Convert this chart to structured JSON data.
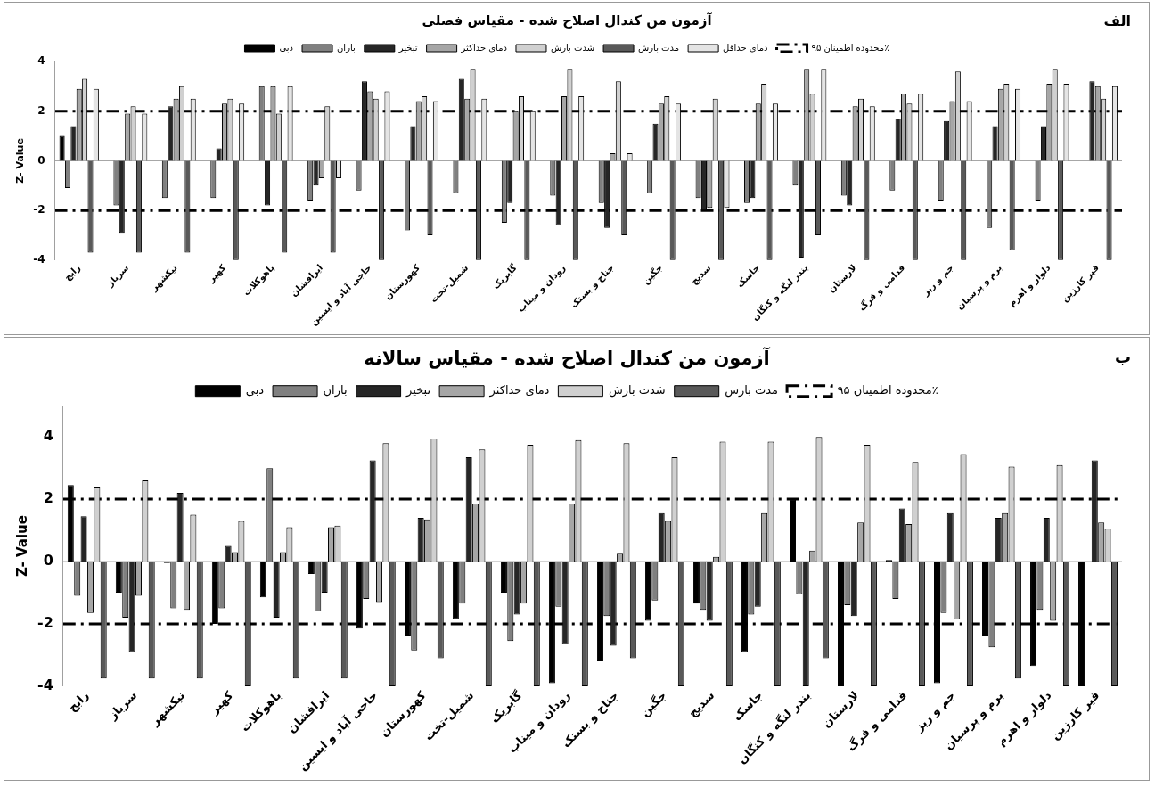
{
  "chart_data": [
    {
      "type": "bar",
      "title": "آزمون من کندال اصلاح شده - مقیاس فصلی",
      "ylabel": "Z- Value",
      "annotations": [
        "الف"
      ],
      "categories": [
        "رابج",
        "سرباز",
        "نیکشهر",
        "کهیر",
        "باهوکلات",
        "ایرافشان",
        "حاجی آباد و ایسین",
        "کهورستان",
        "شمیل-تخت",
        "گابریک",
        "رودان و میناب",
        "جناح و بستک",
        "جگین",
        "سدیج",
        "جاسک",
        "بندر لنگه و کنگان",
        "لارستان",
        "فدامی و فرگ",
        "جم و ریز",
        "برم و پرسیان",
        "دلوار و اهرم",
        "قیر کارزین"
      ],
      "series": [
        {
          "name": "دبی",
          "color": "#000000",
          "values": [
            1.0,
            0,
            0,
            0,
            0,
            0,
            0,
            0,
            0,
            0,
            0,
            0,
            0,
            0,
            0,
            0,
            0,
            0,
            0,
            0,
            0,
            0
          ]
        },
        {
          "name": "باران",
          "color": "#808080",
          "values": [
            -1.1,
            -1.8,
            -1.5,
            -1.5,
            3.0,
            -1.6,
            -1.2,
            -2.8,
            -1.3,
            -2.5,
            -1.4,
            -1.7,
            -1.3,
            -1.5,
            -1.7,
            -1.0,
            -1.4,
            -1.2,
            -1.6,
            -2.7,
            -1.6,
            0
          ]
        },
        {
          "name": "تبخیر",
          "color": "#262626",
          "values": [
            1.4,
            -2.9,
            2.2,
            0.5,
            -1.8,
            -1.0,
            3.2,
            1.4,
            3.3,
            -1.7,
            -2.6,
            -2.7,
            1.5,
            -2.0,
            -1.5,
            -3.9,
            -1.8,
            1.7,
            1.6,
            1.4,
            1.4,
            3.2
          ]
        },
        {
          "name": "دمای حداکثر",
          "color": "#a6a6a6",
          "values": [
            2.9,
            1.9,
            2.5,
            2.3,
            3.0,
            -0.7,
            2.8,
            2.4,
            2.5,
            2.0,
            2.6,
            0.3,
            2.3,
            -1.9,
            2.3,
            3.7,
            2.2,
            2.7,
            2.4,
            2.9,
            3.1,
            3.0
          ]
        },
        {
          "name": "شدت بارش",
          "color": "#d0d0d0",
          "values": [
            3.3,
            2.2,
            3.0,
            2.5,
            1.9,
            2.2,
            2.5,
            2.6,
            3.7,
            2.6,
            3.7,
            3.2,
            2.6,
            2.5,
            3.1,
            2.7,
            2.5,
            2.3,
            3.6,
            3.1,
            3.7,
            2.5
          ]
        },
        {
          "name": "مدت بارش",
          "color": "#595959",
          "values": [
            -3.7,
            -3.7,
            -3.7,
            -4,
            -3.7,
            -3.7,
            -4,
            -3.0,
            -4,
            -4,
            -4,
            -3.0,
            -4,
            -4,
            -4,
            -3.0,
            -4,
            -4,
            -4,
            -3.6,
            -4,
            -4
          ]
        },
        {
          "name": "دمای حداقل",
          "color": "#e4e4e4",
          "values": [
            2.9,
            1.9,
            2.5,
            2.3,
            3.0,
            -0.7,
            2.8,
            2.4,
            2.5,
            2.0,
            2.6,
            0.3,
            2.3,
            -1.9,
            2.3,
            3.7,
            2.2,
            2.7,
            2.4,
            2.9,
            3.1,
            3.0
          ]
        }
      ],
      "ylim": [
        -4,
        4
      ],
      "yticks": [
        -4,
        -2,
        0,
        2,
        4
      ],
      "grid": false,
      "legend": "top",
      "ref_lines": [
        {
          "axis": "y",
          "value": 2,
          "label": "محدوده اطمینان ۹۵٪",
          "color": "#000000",
          "line_style": "dashed"
        },
        {
          "axis": "y",
          "value": -2,
          "color": "#000000",
          "line_style": "dashed"
        }
      ]
    },
    {
      "type": "bar",
      "title": "آزمون من کندال اصلاح شده - مقیاس سالانه",
      "ylabel": "Z- Value",
      "annotations": [
        "ب"
      ],
      "categories": [
        "رابج",
        "سرباز",
        "نیکشهر",
        "کهیر",
        "باهوکلات",
        "ایرافشان",
        "حاجی آباد و ایسین",
        "کهورستان",
        "شمیل-تخت",
        "گابریک",
        "رودان و میناب",
        "جناح و بستک",
        "جگین",
        "سدیج",
        "جاسک",
        "بندر لنگه و کنگان",
        "لارستان",
        "فدامی و فرگ",
        "جم و ریز",
        "برم و پرسیان",
        "دلوار و اهرم",
        "قیر کارزین"
      ],
      "series": [
        {
          "name": "دبی",
          "color": "#000000",
          "values": [
            2.45,
            -1.0,
            -0.05,
            -2.0,
            -1.15,
            -0.4,
            -2.15,
            -2.4,
            -1.85,
            -1.0,
            -3.9,
            -3.2,
            -1.9,
            -1.35,
            -2.9,
            2.0,
            -4,
            0.05,
            -3.9,
            -2.4,
            -3.35,
            -4
          ]
        },
        {
          "name": "باران",
          "color": "#808080",
          "values": [
            -1.1,
            -1.8,
            -1.5,
            -1.5,
            3.0,
            -1.6,
            -1.2,
            -2.85,
            -1.35,
            -2.55,
            -1.45,
            -1.75,
            -1.25,
            -1.55,
            -1.7,
            -1.05,
            -1.4,
            -1.2,
            -1.65,
            -2.75,
            -1.55,
            0
          ]
        },
        {
          "name": "تبخیر",
          "color": "#262626",
          "values": [
            1.45,
            -2.9,
            2.2,
            0.5,
            -1.8,
            -1.0,
            3.25,
            1.4,
            3.35,
            -1.7,
            -2.65,
            -2.7,
            1.55,
            -1.9,
            -1.45,
            -4,
            -1.75,
            1.7,
            1.55,
            1.4,
            1.4,
            3.25
          ]
        },
        {
          "name": "دمای حداکثر",
          "color": "#a6a6a6",
          "values": [
            -1.65,
            -1.1,
            -1.55,
            0.3,
            0.3,
            1.1,
            -1.3,
            1.35,
            1.85,
            -1.35,
            1.85,
            0.25,
            1.3,
            0.15,
            1.55,
            0.35,
            1.25,
            1.2,
            -1.85,
            1.55,
            -1.9,
            1.25
          ]
        },
        {
          "name": "شدت بارش",
          "color": "#d0d0d0",
          "values": [
            2.4,
            2.6,
            1.5,
            1.3,
            1.1,
            1.15,
            3.8,
            3.95,
            3.6,
            3.75,
            3.9,
            3.8,
            3.35,
            3.85,
            3.85,
            4.0,
            3.75,
            3.2,
            3.45,
            3.05,
            3.1,
            1.05
          ]
        },
        {
          "name": "مدت بارش",
          "color": "#595959",
          "values": [
            -3.75,
            -3.75,
            -3.75,
            -4,
            -3.75,
            -3.75,
            -4,
            -3.1,
            -4,
            -4,
            -4,
            -3.1,
            -4,
            -4,
            -4,
            -3.1,
            -4,
            -4,
            -4,
            -3.75,
            -4,
            -4
          ]
        }
      ],
      "ylim": [
        -4,
        5
      ],
      "yticks": [
        -4,
        -2,
        0,
        2,
        4
      ],
      "grid": false,
      "legend": "top",
      "ref_lines": [
        {
          "axis": "y",
          "value": 2,
          "label": "محدوده اطمینان ۹۵٪",
          "color": "#000000",
          "line_style": "dashed"
        },
        {
          "axis": "y",
          "value": -2,
          "color": "#000000",
          "line_style": "dashed"
        }
      ]
    }
  ]
}
